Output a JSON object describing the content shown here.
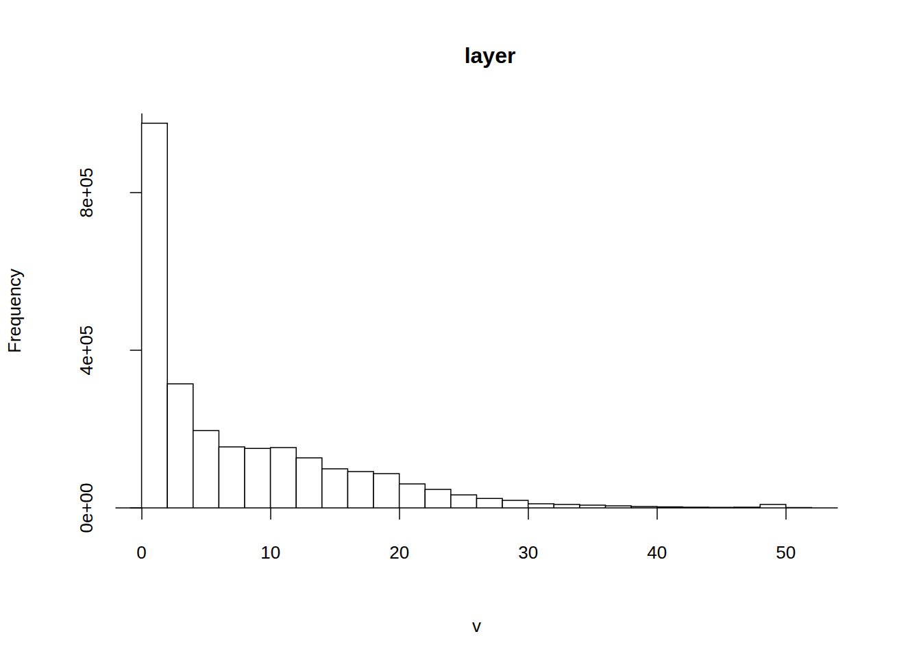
{
  "chart_data": {
    "type": "histogram",
    "title": "layer",
    "x_label": "v",
    "y_label": "Frequency",
    "bins": [
      0,
      2,
      4,
      6,
      8,
      10,
      12,
      14,
      16,
      18,
      20,
      22,
      24,
      26,
      28,
      30,
      32,
      34,
      36,
      38,
      40,
      42,
      44,
      46,
      48,
      50,
      52
    ],
    "counts": [
      976000,
      315000,
      196000,
      155000,
      151000,
      153000,
      127000,
      99000,
      92000,
      87000,
      61000,
      47000,
      33000,
      24000,
      19000,
      10500,
      8700,
      7000,
      5200,
      3500,
      2600,
      1700,
      1500,
      1800,
      8700,
      1000
    ],
    "color": "#ffffff",
    "xlim": [
      -2,
      54
    ],
    "xticks": [
      0,
      10,
      20,
      30,
      40,
      50
    ],
    "ylim": [
      0,
      1000000
    ],
    "yticks": [
      {
        "value": 0,
        "label": "0e+00"
      },
      {
        "value": 400000,
        "label": "4e+05"
      },
      {
        "value": 800000,
        "label": "8e+05"
      }
    ],
    "grid": false
  }
}
